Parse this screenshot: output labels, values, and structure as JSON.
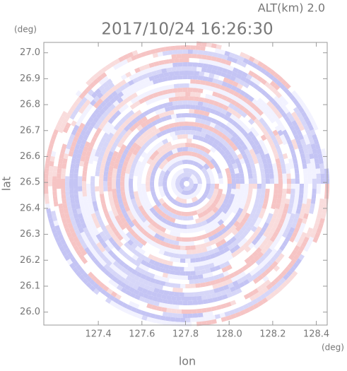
{
  "chart_data": {
    "type": "ppi",
    "title": "2017/10/24 16:26:30",
    "subtitle": "ALT(km) 2.0",
    "xlabel": "lon",
    "ylabel": "lat",
    "xunit": "(deg)",
    "yunit": "(deg)",
    "xlim": [
      127.15,
      128.45
    ],
    "ylim": [
      25.95,
      27.04
    ],
    "xticks": [
      127.4,
      127.6,
      127.8,
      {
        "value": 128,
        "label": "128.0"
      },
      128.2,
      128.4
    ],
    "yticks": [
      {
        "value": 26,
        "label": "26.0"
      },
      26.1,
      26.2,
      26.3,
      26.4,
      26.5,
      26.6,
      26.7,
      26.8,
      26.9,
      {
        "value": 27,
        "label": "27.0"
      }
    ]
  }
}
